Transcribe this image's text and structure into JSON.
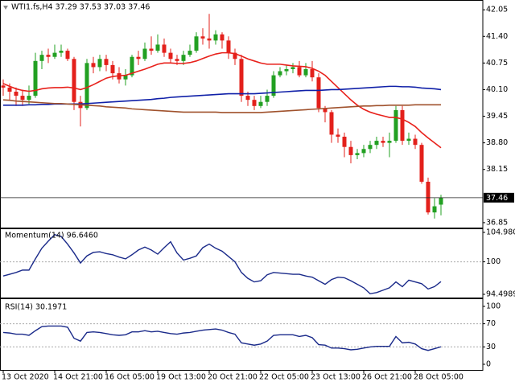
{
  "chart_data": [
    {
      "type": "candlestick",
      "title": "WTI1.fs,H4  37.29 37.53 37.03 37.46",
      "up_color": "#22a022",
      "down_color": "#e3201b",
      "open": [
        40.2,
        40.15,
        40.05,
        39.95,
        39.85,
        39.95,
        40.8,
        40.95,
        40.9,
        41.0,
        41.05,
        40.85,
        39.8,
        39.65,
        40.75,
        40.65,
        40.85,
        40.7,
        40.5,
        40.35,
        40.45,
        40.9,
        40.85,
        41.1,
        41.05,
        41.2,
        41.0,
        40.85,
        40.8,
        40.95,
        41.05,
        41.4,
        41.35,
        41.3,
        41.45,
        41.3,
        41.0,
        40.85,
        39.95,
        39.85,
        39.7,
        39.8,
        39.95,
        40.45,
        40.55,
        40.6,
        40.65,
        40.45,
        40.6,
        40.4,
        39.65,
        39.55,
        39.0,
        38.95,
        38.7,
        38.5,
        38.55,
        38.65,
        38.75,
        38.85,
        38.8,
        38.85,
        39.6,
        38.85,
        38.9,
        38.75,
        37.85,
        37.1,
        37.29
      ],
      "high": [
        40.35,
        40.25,
        40.15,
        40.1,
        40.2,
        41.0,
        41.05,
        41.1,
        41.2,
        41.2,
        41.1,
        40.9,
        39.95,
        40.85,
        40.9,
        40.95,
        40.95,
        40.8,
        40.65,
        40.6,
        40.95,
        41.05,
        41.25,
        41.4,
        41.45,
        41.35,
        41.1,
        40.95,
        41.05,
        41.2,
        41.5,
        41.6,
        41.95,
        41.55,
        41.5,
        41.4,
        41.1,
        40.95,
        40.05,
        39.95,
        39.95,
        40.1,
        40.55,
        40.65,
        40.7,
        40.75,
        40.8,
        40.75,
        40.8,
        40.5,
        39.7,
        39.6,
        39.15,
        39.05,
        38.85,
        38.65,
        38.75,
        38.85,
        38.95,
        38.95,
        39.05,
        39.7,
        39.7,
        39.05,
        39.0,
        38.8,
        37.95,
        37.45,
        37.53
      ],
      "low": [
        39.95,
        39.85,
        39.7,
        39.7,
        39.75,
        39.9,
        40.6,
        40.75,
        40.85,
        40.9,
        40.8,
        39.6,
        39.2,
        39.6,
        40.5,
        40.55,
        40.55,
        40.35,
        40.25,
        40.2,
        40.4,
        40.7,
        40.8,
        40.95,
        41.0,
        40.9,
        40.75,
        40.7,
        40.7,
        40.9,
        41.0,
        41.2,
        41.1,
        41.2,
        41.1,
        40.85,
        40.7,
        39.8,
        39.7,
        39.6,
        39.65,
        39.7,
        39.9,
        40.4,
        40.45,
        40.5,
        40.4,
        40.4,
        40.3,
        39.55,
        39.3,
        38.8,
        38.8,
        38.45,
        38.3,
        38.4,
        38.45,
        38.55,
        38.65,
        38.7,
        38.45,
        38.8,
        38.75,
        38.75,
        38.65,
        37.8,
        37.05,
        36.95,
        37.03
      ],
      "close": [
        40.15,
        40.05,
        39.95,
        39.85,
        39.95,
        40.8,
        40.95,
        40.9,
        41.0,
        41.05,
        40.85,
        39.8,
        39.65,
        40.75,
        40.65,
        40.85,
        40.7,
        40.5,
        40.35,
        40.45,
        40.9,
        40.85,
        41.1,
        41.05,
        41.2,
        41.0,
        40.85,
        40.8,
        40.95,
        41.05,
        41.4,
        41.35,
        41.3,
        41.45,
        41.3,
        41.0,
        40.85,
        39.95,
        39.85,
        39.7,
        39.8,
        39.95,
        40.45,
        40.55,
        40.6,
        40.65,
        40.45,
        40.6,
        40.4,
        39.65,
        39.55,
        39.0,
        38.95,
        38.7,
        38.5,
        38.55,
        38.65,
        38.75,
        38.85,
        38.8,
        38.85,
        39.6,
        38.85,
        38.9,
        38.75,
        37.85,
        37.1,
        37.25,
        37.46
      ],
      "series": [
        {
          "color": "#e8211b",
          "values": [
            40.25,
            40.18,
            40.12,
            40.08,
            40.06,
            40.08,
            40.12,
            40.14,
            40.15,
            40.15,
            40.16,
            40.14,
            40.1,
            40.15,
            40.22,
            40.3,
            40.38,
            40.42,
            40.44,
            40.45,
            40.5,
            40.55,
            40.6,
            40.66,
            40.72,
            40.75,
            40.75,
            40.74,
            40.74,
            40.76,
            40.8,
            40.86,
            40.92,
            40.97,
            41.0,
            41.0,
            40.98,
            40.92,
            40.85,
            40.8,
            40.75,
            40.72,
            40.72,
            40.72,
            40.7,
            40.68,
            40.67,
            40.66,
            40.62,
            40.55,
            40.45,
            40.3,
            40.15,
            40.0,
            39.85,
            39.72,
            39.62,
            39.55,
            39.5,
            39.46,
            39.42,
            39.42,
            39.38,
            39.3,
            39.2,
            39.05,
            38.92,
            38.8,
            38.68
          ]
        },
        {
          "color": "#1020a8",
          "values": [
            39.72,
            39.72,
            39.72,
            39.72,
            39.73,
            39.73,
            39.74,
            39.74,
            39.75,
            39.75,
            39.75,
            39.75,
            39.75,
            39.76,
            39.77,
            39.78,
            39.79,
            39.8,
            39.81,
            39.82,
            39.83,
            39.84,
            39.85,
            39.86,
            39.88,
            39.89,
            39.91,
            39.92,
            39.93,
            39.94,
            39.95,
            39.96,
            39.97,
            39.98,
            39.99,
            40.0,
            40.0,
            40.0,
            40.0,
            40.0,
            40.01,
            40.02,
            40.03,
            40.04,
            40.05,
            40.06,
            40.07,
            40.08,
            40.08,
            40.08,
            40.09,
            40.1,
            40.1,
            40.11,
            40.12,
            40.13,
            40.14,
            40.15,
            40.16,
            40.17,
            40.18,
            40.18,
            40.17,
            40.17,
            40.16,
            40.14,
            40.13,
            40.12,
            40.1
          ]
        },
        {
          "color": "#a0522d",
          "values": [
            39.85,
            39.84,
            39.82,
            39.81,
            39.8,
            39.79,
            39.78,
            39.77,
            39.76,
            39.76,
            39.75,
            39.74,
            39.73,
            39.72,
            39.71,
            39.7,
            39.68,
            39.67,
            39.66,
            39.65,
            39.63,
            39.62,
            39.61,
            39.6,
            39.59,
            39.58,
            39.57,
            39.56,
            39.55,
            39.55,
            39.55,
            39.55,
            39.55,
            39.55,
            39.54,
            39.54,
            39.54,
            39.54,
            39.54,
            39.54,
            39.54,
            39.55,
            39.56,
            39.57,
            39.58,
            39.59,
            39.6,
            39.61,
            39.62,
            39.63,
            39.64,
            39.65,
            39.66,
            39.67,
            39.68,
            39.69,
            39.7,
            39.7,
            39.71,
            39.71,
            39.72,
            39.72,
            39.72,
            39.72,
            39.73,
            39.73,
            39.73,
            39.73,
            39.73
          ]
        }
      ],
      "price_line": 37.46,
      "ylim": [
        36.73,
        42.25
      ],
      "yticks": [
        42.05,
        {
          "value": 41.4,
          "label": "41.40"
        },
        40.75,
        {
          "value": 40.1,
          "label": "40.10"
        },
        39.45,
        {
          "value": 38.8,
          "label": "38.80"
        },
        38.15,
        36.85
      ]
    },
    {
      "type": "line",
      "title": "Momentum(14) 96.6460",
      "series": [
        {
          "color": "#1a2a8a",
          "values": [
            97.6,
            97.9,
            98.2,
            98.6,
            98.6,
            100.5,
            102.3,
            103.5,
            104.6,
            104.3,
            103.0,
            101.5,
            99.8,
            101.0,
            101.6,
            101.7,
            101.4,
            101.2,
            100.8,
            100.5,
            101.2,
            102.0,
            102.5,
            102.0,
            101.3,
            102.4,
            103.4,
            101.5,
            100.3,
            100.6,
            101.0,
            102.4,
            103.0,
            102.3,
            101.8,
            100.9,
            100.0,
            98.2,
            97.2,
            96.6,
            96.8,
            97.8,
            98.2,
            98.1,
            98.0,
            97.9,
            97.9,
            97.6,
            97.4,
            96.8,
            96.2,
            97.0,
            97.4,
            97.3,
            96.8,
            96.2,
            95.6,
            94.6,
            94.8,
            95.2,
            95.6,
            96.6,
            95.8,
            96.9,
            96.6,
            96.3,
            95.4,
            95.8,
            96.646
          ]
        }
      ],
      "levels": [
        100
      ],
      "ylim": [
        94.4989,
        104.9802
      ],
      "yticks": [
        104.9802,
        100,
        94.4989
      ]
    },
    {
      "type": "line",
      "title": "RSI(14) 30.1971",
      "categories": [
        "13 Oct 2020",
        null,
        null,
        null,
        null,
        null,
        null,
        null,
        "14 Oct 21:00",
        null,
        null,
        null,
        null,
        null,
        null,
        null,
        "16 Oct 05:00",
        null,
        null,
        null,
        null,
        null,
        null,
        null,
        "19 Oct 13:00",
        null,
        null,
        null,
        null,
        null,
        null,
        null,
        "20 Oct 21:00",
        null,
        null,
        null,
        null,
        null,
        null,
        null,
        "22 Oct 05:00",
        null,
        null,
        null,
        null,
        null,
        null,
        null,
        "23 Oct 13:00",
        null,
        null,
        null,
        null,
        null,
        null,
        null,
        "26 Oct 21:00",
        null,
        null,
        null,
        null,
        null,
        null,
        null,
        "28 Oct 05:00",
        null,
        null,
        null,
        null
      ],
      "series": [
        {
          "color": "#1a2a8a",
          "values": [
            55,
            54,
            52,
            52,
            50,
            58,
            65,
            66,
            66,
            66,
            64,
            45,
            40,
            55,
            56,
            55,
            53,
            51,
            50,
            51,
            56,
            56,
            58,
            56,
            57,
            55,
            53,
            52,
            54,
            55,
            57,
            59,
            60,
            61,
            59,
            55,
            52,
            37,
            35,
            33,
            35,
            40,
            50,
            51,
            51,
            51,
            48,
            50,
            46,
            34,
            33,
            28,
            28,
            27,
            25,
            26,
            28,
            30,
            31,
            31,
            31,
            48,
            37,
            38,
            35,
            27,
            24,
            27,
            30.1971
          ]
        }
      ],
      "levels": [
        70,
        30
      ],
      "ylim": [
        0,
        100
      ],
      "yticks": [
        100,
        70,
        30,
        0
      ]
    }
  ]
}
